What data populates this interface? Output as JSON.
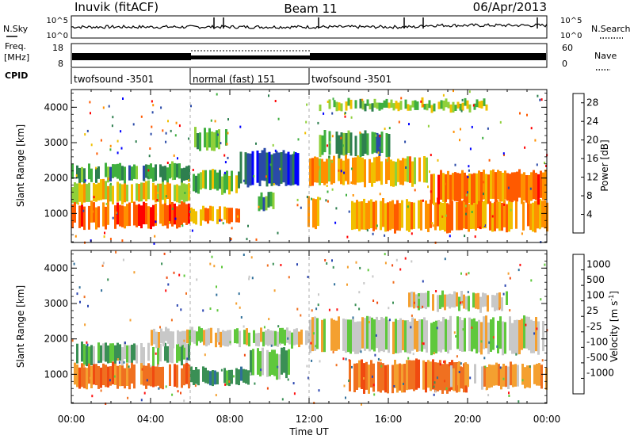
{
  "header": {
    "station": "Inuvik (fitACF)",
    "beam": "Beam 11",
    "date": "06/Apr/2013"
  },
  "strip_panels": {
    "nsky": {
      "label": "N.Sky",
      "tick_top": "10^5",
      "tick_bottom": "10^0"
    },
    "nsearch": {
      "label": "N.Search",
      "tick_top": "10^5",
      "tick_bottom": "10^0"
    },
    "freq": {
      "label_line1": "Freq.",
      "label_line2": "[MHz]",
      "tick_top": "18",
      "tick_bottom": "8"
    },
    "nave": {
      "label": "Nave",
      "tick_top": "60",
      "tick_bottom": "0"
    },
    "cpid": {
      "label": "CPID",
      "segments": [
        {
          "name": "twofsound -3501",
          "start_hr": 0,
          "end_hr": 6
        },
        {
          "name": "normal (fast) 151",
          "start_hr": 6,
          "end_hr": 12
        },
        {
          "name": "twofsound -3501",
          "start_hr": 12,
          "end_hr": 24
        }
      ]
    }
  },
  "colors": {
    "power": [
      "#0000ff",
      "#2a4aa8",
      "#2e7f4f",
      "#3faf3f",
      "#8fd03a",
      "#f0c000",
      "#ff9000",
      "#ff5a00",
      "#ff0000"
    ],
    "velocity": [
      "#2a45b0",
      "#2f6f9a",
      "#3a8f55",
      "#5fc83c",
      "#c8c8c8",
      "#f4a030",
      "#f07020",
      "#f04a10",
      "#ff1010"
    ]
  },
  "chart_data": [
    {
      "type": "heatmap",
      "name": "Power",
      "ylabel": "Slant Range [km]",
      "xlabel": "Time UT",
      "xlim_hr": [
        0,
        24
      ],
      "ylim_km": [
        180,
        4500
      ],
      "yticks": [
        "1000",
        "2000",
        "3000",
        "4000"
      ],
      "xticks": [
        "00:00",
        "04:00",
        "08:00",
        "12:00",
        "16:00",
        "20:00",
        "00:00"
      ],
      "colorbar": {
        "label": "Power [dB]",
        "ticks": [
          "4",
          "8",
          "12",
          "16",
          "20",
          "24",
          "28"
        ],
        "range": [
          0,
          30
        ]
      },
      "bands": [
        {
          "t0": 0.0,
          "t1": 6.0,
          "r0": 600,
          "r1": 1300,
          "v": 27
        },
        {
          "t0": 0.0,
          "t1": 6.0,
          "r0": 1300,
          "r1": 1900,
          "v": 18
        },
        {
          "t0": 0.0,
          "t1": 6.0,
          "r0": 1900,
          "r1": 2400,
          "v": 10
        },
        {
          "t0": 6.0,
          "t1": 8.5,
          "r0": 700,
          "r1": 1200,
          "v": 22
        },
        {
          "t0": 6.0,
          "t1": 8.5,
          "r0": 1600,
          "r1": 2200,
          "v": 14
        },
        {
          "t0": 6.2,
          "t1": 8.0,
          "r0": 2800,
          "r1": 3400,
          "v": 14
        },
        {
          "t0": 8.5,
          "t1": 11.5,
          "r0": 1800,
          "r1": 2800,
          "v": 4
        },
        {
          "t0": 9.3,
          "t1": 10.2,
          "r0": 1100,
          "r1": 1600,
          "v": 10
        },
        {
          "t0": 11.8,
          "t1": 12.4,
          "r0": 600,
          "r1": 1500,
          "v": 24
        },
        {
          "t0": 12.0,
          "t1": 18.0,
          "r0": 1800,
          "r1": 2600,
          "v": 20
        },
        {
          "t0": 12.5,
          "t1": 16.0,
          "r0": 2600,
          "r1": 3300,
          "v": 10
        },
        {
          "t0": 12.5,
          "t1": 21.0,
          "r0": 3900,
          "r1": 4200,
          "v": 14
        },
        {
          "t0": 14.0,
          "t1": 24.0,
          "r0": 500,
          "r1": 1400,
          "v": 22
        },
        {
          "t0": 18.0,
          "t1": 24.0,
          "r0": 1300,
          "r1": 2200,
          "v": 24
        }
      ]
    },
    {
      "type": "heatmap",
      "name": "Velocity",
      "ylabel": "Slant Range [km]",
      "xlabel": "Time UT",
      "xlim_hr": [
        0,
        24
      ],
      "ylim_km": [
        180,
        4500
      ],
      "yticks": [
        "1000",
        "2000",
        "3000",
        "4000"
      ],
      "xticks": [
        "00:00",
        "04:00",
        "08:00",
        "12:00",
        "16:00",
        "20:00",
        "00:00"
      ],
      "colorbar": {
        "label": "Velocity [m s-1]",
        "label_main": "Velocity [m s",
        "label_sup": "-1",
        "label_end": "]",
        "ticks": [
          "1000",
          "500",
          "100",
          "25",
          "-25",
          "-100",
          "-500",
          "-1000"
        ]
      },
      "bands": [
        {
          "t0": 0.0,
          "t1": 6.0,
          "r0": 600,
          "r1": 1300,
          "v": 6
        },
        {
          "t0": 0.0,
          "t1": 6.0,
          "r0": 1300,
          "r1": 1900,
          "v": 3
        },
        {
          "t0": 4.0,
          "t1": 12.0,
          "r0": 1800,
          "r1": 2300,
          "v": 4
        },
        {
          "t0": 6.0,
          "t1": 9.0,
          "r0": 700,
          "r1": 1200,
          "v": 2
        },
        {
          "t0": 9.0,
          "t1": 11.0,
          "r0": 900,
          "r1": 1700,
          "v": 3
        },
        {
          "t0": 12.0,
          "t1": 24.0,
          "r0": 1600,
          "r1": 2600,
          "v": 4
        },
        {
          "t0": 14.0,
          "t1": 20.0,
          "r0": 500,
          "r1": 1400,
          "v": 6
        },
        {
          "t0": 19.0,
          "t1": 24.0,
          "r0": 600,
          "r1": 1300,
          "v": 5
        },
        {
          "t0": 17.0,
          "t1": 22.0,
          "r0": 2800,
          "r1": 3300,
          "v": 4
        }
      ]
    }
  ]
}
